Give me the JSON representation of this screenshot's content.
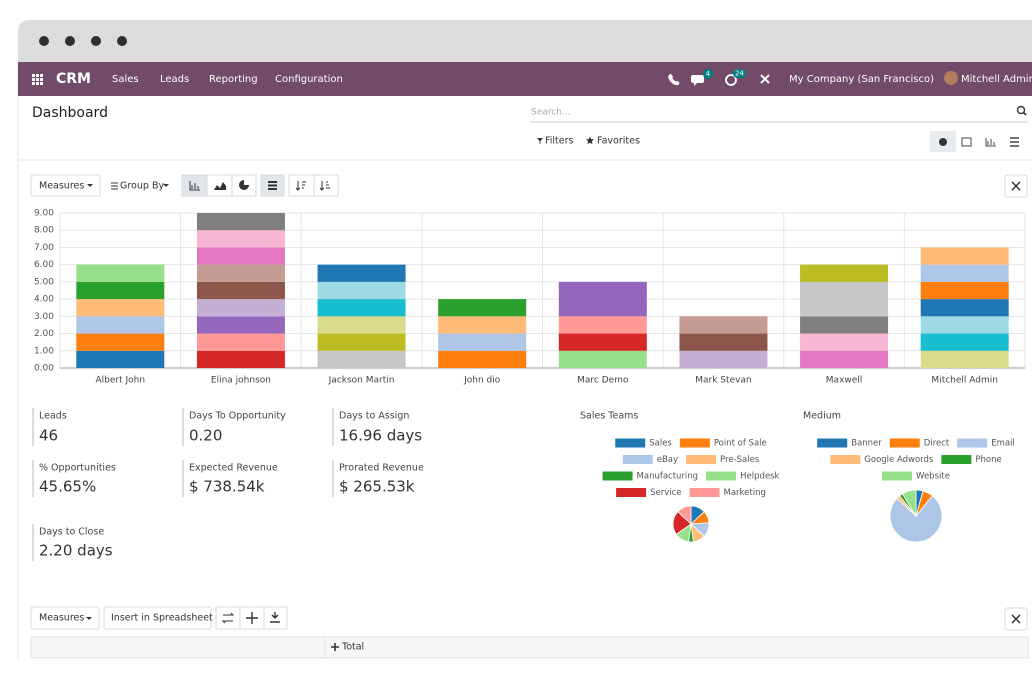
{
  "navbar": {
    "app": "CRM",
    "menu": [
      "Sales",
      "Leads",
      "Reporting",
      "Configuration"
    ],
    "chat_badge": 4,
    "activity_badge": 24,
    "company": "My Company (San Francisco)",
    "user": "Mitchell Admin"
  },
  "control_panel": {
    "title": "Dashboard",
    "search_placeholder": "Search...",
    "filters": "Filters",
    "favorites": "Favorites"
  },
  "graph_toolbar": {
    "measures": "Measures",
    "group_by": "Group By"
  },
  "chart_data": [
    {
      "type": "bar",
      "stacked": true,
      "categories": [
        "Albert John",
        "Elina johnson",
        "Jackson Martin",
        "John dio",
        "Marc Demo",
        "Mark Stevan",
        "Maxwell",
        "Mitchell Admin"
      ],
      "stacks": [
        [
          {
            "value": 1,
            "color": "#1f77b4"
          },
          {
            "value": 1,
            "color": "#ff7f0e"
          },
          {
            "value": 1,
            "color": "#aec7e8"
          },
          {
            "value": 1,
            "color": "#ffbb78"
          },
          {
            "value": 1,
            "color": "#2ca02c"
          },
          {
            "value": 1,
            "color": "#98df8a"
          }
        ],
        [
          {
            "value": 1,
            "color": "#d62728"
          },
          {
            "value": 1,
            "color": "#ff9896"
          },
          {
            "value": 1,
            "color": "#9467bd"
          },
          {
            "value": 1,
            "color": "#c5b0d5"
          },
          {
            "value": 1,
            "color": "#8c564b"
          },
          {
            "value": 1,
            "color": "#c49c94"
          },
          {
            "value": 1,
            "color": "#e377c2"
          },
          {
            "value": 1,
            "color": "#f7b6d2"
          },
          {
            "value": 1,
            "color": "#7f7f7f"
          }
        ],
        [
          {
            "value": 1,
            "color": "#c7c7c7"
          },
          {
            "value": 1,
            "color": "#bcbd22"
          },
          {
            "value": 1,
            "color": "#dbdb8d"
          },
          {
            "value": 1,
            "color": "#17becf"
          },
          {
            "value": 1,
            "color": "#9edae5"
          },
          {
            "value": 1,
            "color": "#1f77b4"
          }
        ],
        [
          {
            "value": 1,
            "color": "#ff7f0e"
          },
          {
            "value": 1,
            "color": "#aec7e8"
          },
          {
            "value": 1,
            "color": "#ffbb78"
          },
          {
            "value": 1,
            "color": "#2ca02c"
          }
        ],
        [
          {
            "value": 1,
            "color": "#98df8a"
          },
          {
            "value": 1,
            "color": "#d62728"
          },
          {
            "value": 1,
            "color": "#ff9896"
          },
          {
            "value": 2,
            "color": "#9467bd"
          }
        ],
        [
          {
            "value": 1,
            "color": "#c5b0d5"
          },
          {
            "value": 1,
            "color": "#8c564b"
          },
          {
            "value": 1,
            "color": "#c49c94"
          }
        ],
        [
          {
            "value": 1,
            "color": "#e377c2"
          },
          {
            "value": 1,
            "color": "#f7b6d2"
          },
          {
            "value": 1,
            "color": "#7f7f7f"
          },
          {
            "value": 2,
            "color": "#c7c7c7"
          },
          {
            "value": 1,
            "color": "#bcbd22"
          }
        ],
        [
          {
            "value": 1,
            "color": "#dbdb8d"
          },
          {
            "value": 1,
            "color": "#17becf"
          },
          {
            "value": 1,
            "color": "#9edae5"
          },
          {
            "value": 1,
            "color": "#1f77b4"
          },
          {
            "value": 1,
            "color": "#ff7f0e"
          },
          {
            "value": 1,
            "color": "#aec7e8"
          },
          {
            "value": 1,
            "color": "#ffbb78"
          }
        ]
      ],
      "ylim": [
        0,
        9
      ],
      "yticks": [
        {
          "value": 0,
          "label": "0.00"
        },
        {
          "value": 1,
          "label": "1.00"
        },
        {
          "value": 2,
          "label": "2.00"
        },
        {
          "value": 3,
          "label": "3.00"
        },
        {
          "value": 4,
          "label": "4.00"
        },
        {
          "value": 5,
          "label": "5.00"
        },
        {
          "value": 6,
          "label": "6.00"
        },
        {
          "value": 7,
          "label": "7.00"
        },
        {
          "value": 8,
          "label": "8.00"
        },
        {
          "value": 9,
          "label": "9.00"
        }
      ],
      "grid": true
    },
    {
      "type": "pie",
      "title": "Sales Teams",
      "categories": [
        "Sales",
        "Point of Sale",
        "eBay",
        "Pre-Sales",
        "Manufacturing",
        "Helpdesk",
        "Service",
        "Marketing"
      ],
      "colors": [
        "#1f77b4",
        "#ff7f0e",
        "#aec7e8",
        "#ffbb78",
        "#2ca02c",
        "#98df8a",
        "#d62728",
        "#ff9896"
      ],
      "values": [
        6,
        5,
        6,
        5,
        2,
        6,
        10,
        6
      ]
    },
    {
      "type": "pie",
      "title": "Medium",
      "categories": [
        "Banner",
        "Direct",
        "Email",
        "Google Adwords",
        "Phone",
        "Website"
      ],
      "colors": [
        "#1f77b4",
        "#ff7f0e",
        "#aec7e8",
        "#ffbb78",
        "#2ca02c",
        "#98df8a"
      ],
      "values": [
        2,
        3,
        35,
        1,
        1,
        4
      ]
    }
  ],
  "kpis": [
    {
      "label": "Leads",
      "value": "46"
    },
    {
      "label": "Days To Opportunity",
      "value": "0.20"
    },
    {
      "label": "Days to Assign",
      "value": "16.96 days"
    },
    {
      "label": "% Opportunities",
      "value": "45.65%"
    },
    {
      "label": "Expected Revenue",
      "value": "$ 738.54k"
    },
    {
      "label": "Prorated Revenue",
      "value": "$ 265.53k"
    },
    {
      "label": "Days to Close",
      "value": "2.20 days"
    }
  ],
  "pivot": {
    "measures": "Measures",
    "insert": "Insert in Spreadsheet",
    "header": "Total"
  }
}
